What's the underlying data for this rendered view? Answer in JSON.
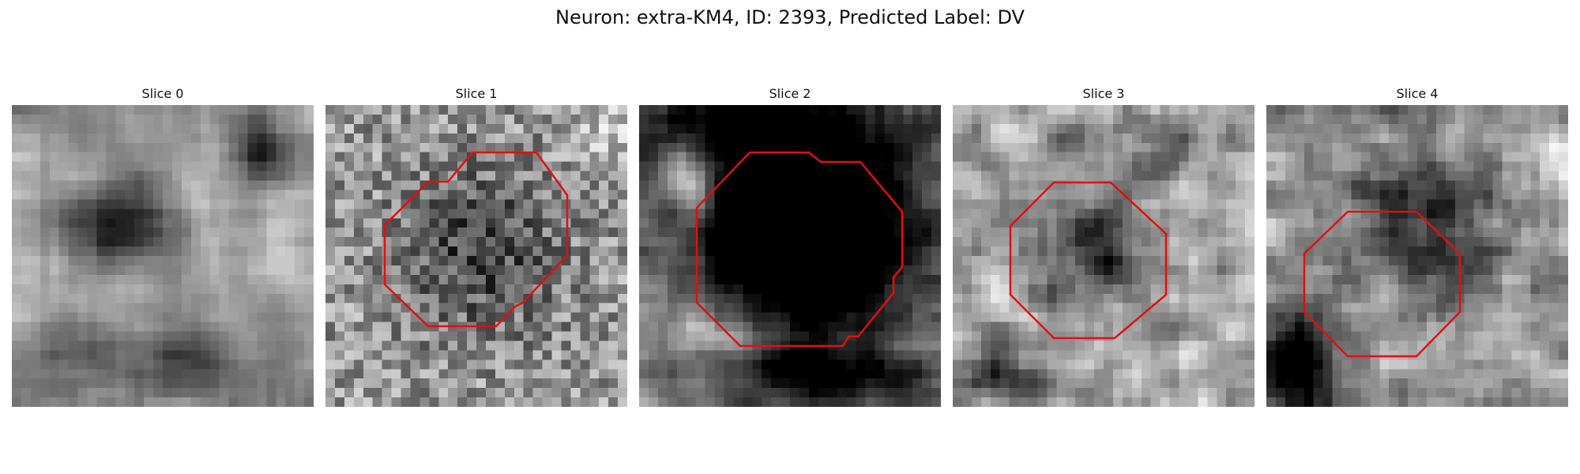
{
  "figure": {
    "title": "Neuron: extra-KM4, ID: 2393, Predicted Label: DV",
    "outline_color": "#e01010",
    "grid_size": 32
  },
  "slices": [
    {
      "title": "Slice 0",
      "has_outline": false
    },
    {
      "title": "Slice 1",
      "has_outline": true
    },
    {
      "title": "Slice 2",
      "has_outline": true
    },
    {
      "title": "Slice 3",
      "has_outline": true
    },
    {
      "title": "Slice 4",
      "has_outline": true
    }
  ]
}
